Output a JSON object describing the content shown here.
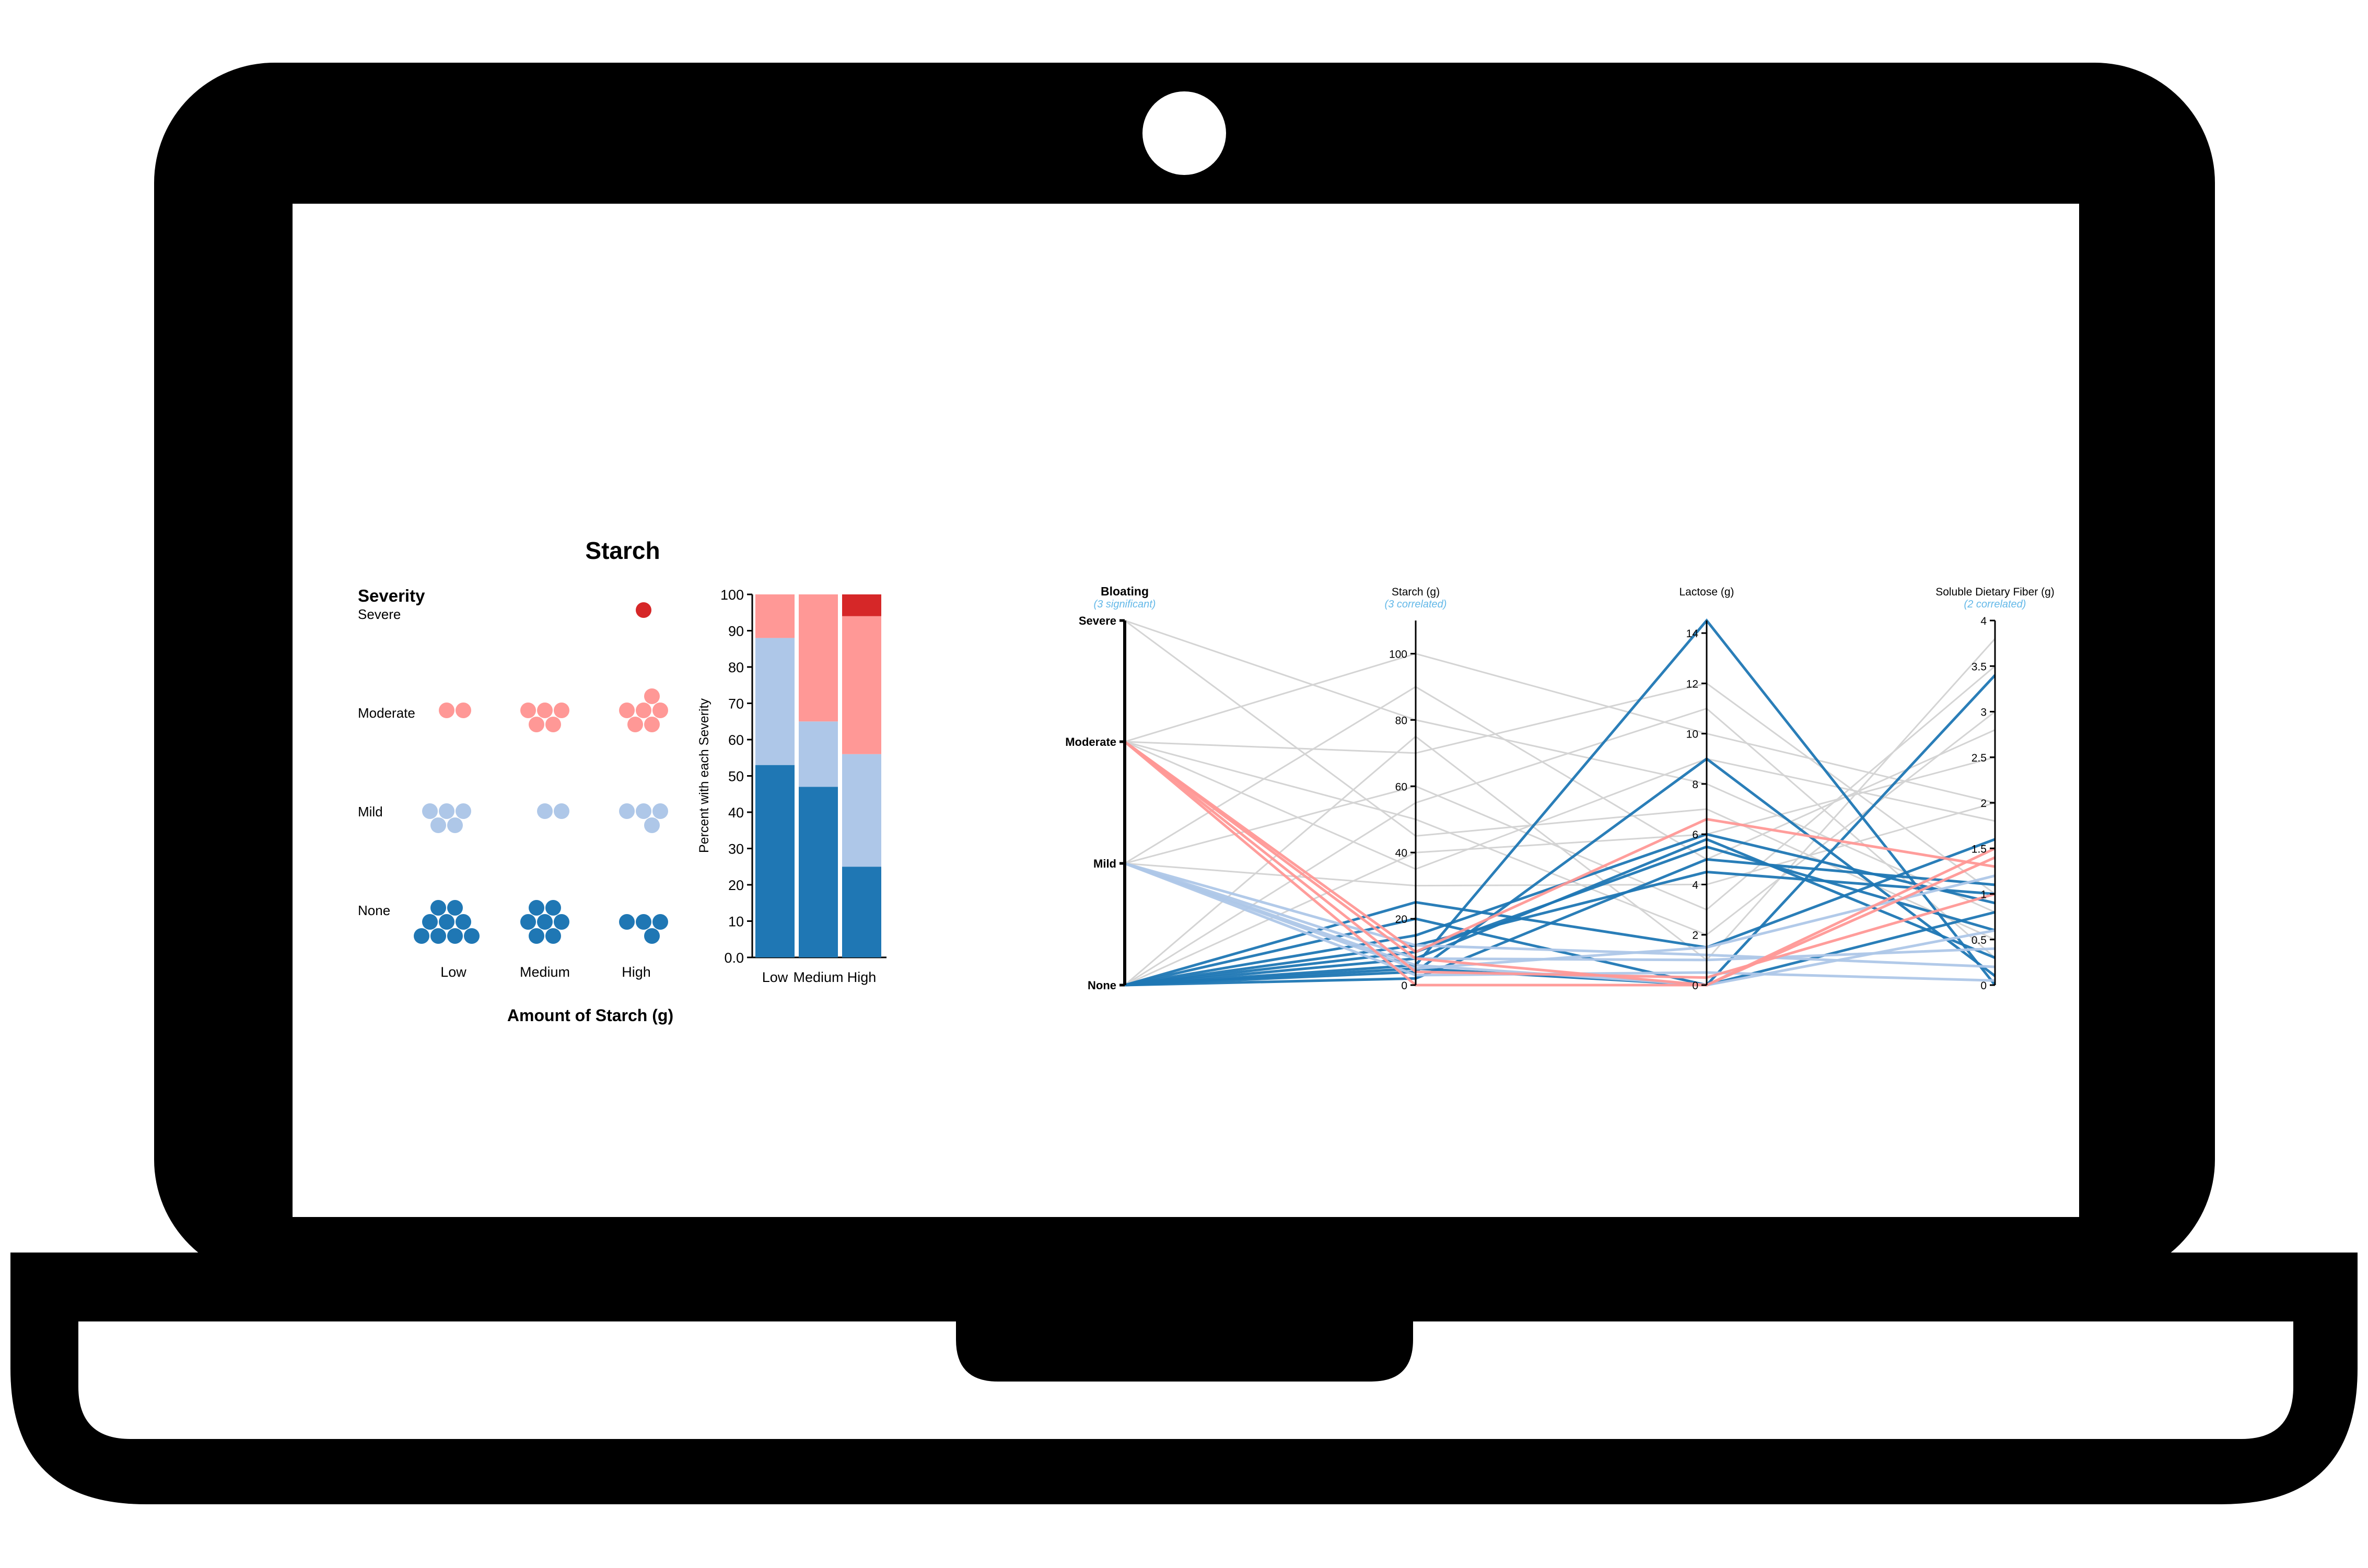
{
  "colors": {
    "severe": "#d62728",
    "moderate": "#ff9896",
    "mild": "#aec7e8",
    "none": "#1f77b4",
    "frame": "#000000",
    "screen": "#ffffff",
    "significant": "#63b8e8",
    "gray_line": "#d4d4d4"
  },
  "icons": {
    "laptop": "laptop-frame-icon",
    "webcam": "webcam-icon"
  },
  "dot_chart": {
    "title": "Starch",
    "legend_title": "Severity",
    "rows": [
      "Severe",
      "Moderate",
      "Mild",
      "None"
    ],
    "columns": [
      "Low",
      "Medium",
      "High"
    ],
    "xlabel": "Amount of Starch (g)",
    "counts": [
      [
        0,
        0,
        1
      ],
      [
        2,
        5,
        6
      ],
      [
        5,
        2,
        4
      ],
      [
        9,
        7,
        4
      ]
    ]
  },
  "chart_data": [
    {
      "type": "bar",
      "stacked": true,
      "categories": [
        "Low",
        "Medium",
        "High"
      ],
      "series": [
        {
          "name": "None",
          "values": [
            53,
            47,
            25
          ]
        },
        {
          "name": "Mild",
          "values": [
            35,
            18,
            31
          ]
        },
        {
          "name": "Moderate",
          "values": [
            12,
            35,
            38
          ]
        },
        {
          "name": "Severe",
          "values": [
            0,
            0,
            6
          ]
        }
      ],
      "xlabel": "",
      "ylabel": "Percent with each Severity",
      "ylim": [
        0,
        100
      ],
      "yticks": [
        "0.0",
        "10",
        "20",
        "30",
        "40",
        "50",
        "60",
        "70",
        "80",
        "90",
        "100"
      ]
    },
    {
      "type": "parallel_coordinates",
      "axes": [
        {
          "title": "Bloating",
          "subtitle": "(3 significant)",
          "categories": [
            "None",
            "Mild",
            "Moderate",
            "Severe"
          ],
          "ticks": [
            "Severe",
            "Moderate",
            "Mild",
            "None"
          ]
        },
        {
          "title": "Starch (g)",
          "subtitle": "(3 correlated)",
          "range": [
            0,
            110
          ],
          "ticks": [
            "100",
            "80",
            "60",
            "40",
            "20",
            "0"
          ]
        },
        {
          "title": "Lactose (g)",
          "subtitle": "",
          "range": [
            0,
            14.5
          ],
          "ticks": [
            "14",
            "12",
            "10",
            "8",
            "6",
            "4",
            "2",
            "0"
          ]
        },
        {
          "title": "Soluble Dietary Fiber (g)",
          "subtitle": "(2 correlated)",
          "range": [
            0,
            4
          ],
          "ticks": [
            "4",
            "3.5",
            "3",
            "2.5",
            "2",
            "1.5",
            "1",
            "0.5",
            "0"
          ]
        }
      ],
      "lines": [
        {
          "severity": "None",
          "values": [
            "None",
            6,
            14.5,
            0
          ]
        },
        {
          "severity": "None",
          "values": [
            "None",
            4,
            9,
            0.1
          ]
        },
        {
          "severity": "None",
          "values": [
            "None",
            8,
            5.8,
            0.3
          ]
        },
        {
          "severity": "None",
          "values": [
            "None",
            10,
            5.5,
            0.6
          ]
        },
        {
          "severity": "None",
          "values": [
            "None",
            2,
            5,
            1.1
          ]
        },
        {
          "severity": "None",
          "values": [
            "None",
            12,
            4.5,
            1.0
          ]
        },
        {
          "severity": "None",
          "values": [
            "None",
            25,
            1.5,
            1.6
          ]
        },
        {
          "severity": "None",
          "values": [
            "None",
            20,
            0,
            3.4
          ]
        },
        {
          "severity": "None",
          "values": [
            "None",
            5,
            0,
            0.8
          ]
        },
        {
          "severity": "None",
          "values": [
            "None",
            15,
            6,
            0.9
          ]
        },
        {
          "severity": "Mild",
          "values": [
            "Mild",
            5,
            1.5,
            1.2
          ]
        },
        {
          "severity": "Mild",
          "values": [
            "Mild",
            8,
            1.0,
            0.4
          ]
        },
        {
          "severity": "Mild",
          "values": [
            "Mild",
            12,
            1.2,
            0.2
          ]
        },
        {
          "severity": "Mild",
          "values": [
            "Mild",
            3,
            0.5,
            0.05
          ]
        },
        {
          "severity": "Mild",
          "values": [
            "Mild",
            6,
            0,
            0.6
          ]
        },
        {
          "severity": "Moderate",
          "values": [
            "Moderate",
            10,
            6.6,
            1.3
          ]
        },
        {
          "severity": "Moderate",
          "values": [
            "Moderate",
            0,
            0,
            1.5
          ]
        },
        {
          "severity": "Moderate",
          "values": [
            "Moderate",
            8,
            0,
            1.4
          ]
        },
        {
          "severity": "Moderate",
          "values": [
            "Moderate",
            4,
            0.3,
            1.0
          ]
        },
        {
          "severity": "Other",
          "values": [
            "Severe",
            80,
            8,
            0.8
          ]
        },
        {
          "severity": "Other",
          "values": [
            "Moderate",
            100,
            10,
            2
          ]
        },
        {
          "severity": "Other",
          "values": [
            "Mild",
            60,
            3,
            3.5
          ]
        },
        {
          "severity": "Other",
          "values": [
            "None",
            40,
            6,
            2.5
          ]
        },
        {
          "severity": "Other",
          "values": [
            "Moderate",
            70,
            12,
            1.0
          ]
        },
        {
          "severity": "Other",
          "values": [
            "Moderate",
            50,
            2,
            3.0
          ]
        },
        {
          "severity": "Other",
          "values": [
            "Mild",
            30,
            4,
            2.0
          ]
        },
        {
          "severity": "Other",
          "values": [
            "None",
            75,
            1,
            3.8
          ]
        },
        {
          "severity": "Other",
          "values": [
            "Severe",
            45,
            7,
            0.5
          ]
        },
        {
          "severity": "Other",
          "values": [
            "Mild",
            90,
            5,
            2.8
          ]
        },
        {
          "severity": "Other",
          "values": [
            "Moderate",
            35,
            9,
            1.8
          ]
        },
        {
          "severity": "Other",
          "values": [
            "None",
            55,
            11,
            0.3
          ]
        }
      ]
    }
  ]
}
